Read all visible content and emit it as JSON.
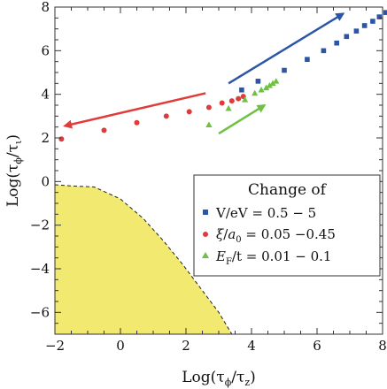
{
  "chart_data": {
    "type": "scatter",
    "xlabel": "Log(τϕ/τz)",
    "ylabel": "Log(τϕ/τι)",
    "xlim": [
      -2,
      8
    ],
    "ylim": [
      -7,
      8
    ],
    "x_ticks": [
      -2,
      0,
      2,
      4,
      6,
      8
    ],
    "x_tick_labels": [
      "−2",
      "0",
      "2",
      "4",
      "6",
      "8"
    ],
    "y_ticks": [
      -6,
      -4,
      -2,
      0,
      2,
      4,
      6,
      8
    ],
    "y_tick_labels": [
      "−6",
      "−4",
      "−2",
      "0",
      "2",
      "4",
      "6",
      "8"
    ],
    "grid": false,
    "legend": {
      "title": "Change of",
      "placement": "center-right",
      "entries": [
        "V/eV = 0.5 − 5",
        "ξ/a₀ = 0.05 −0.45",
        "EF/t = 0.01 − 0.1"
      ]
    },
    "series": [
      {
        "marker": "square",
        "color": "#2b56a8",
        "points": [
          [
            3.7,
            4.2
          ],
          [
            4.2,
            4.6
          ],
          [
            5.0,
            5.1
          ],
          [
            5.7,
            5.6
          ],
          [
            6.2,
            6.0
          ],
          [
            6.6,
            6.35
          ],
          [
            6.9,
            6.65
          ],
          [
            7.2,
            6.9
          ],
          [
            7.45,
            7.15
          ],
          [
            7.7,
            7.35
          ],
          [
            7.9,
            7.55
          ],
          [
            8.1,
            7.75
          ]
        ]
      },
      {
        "marker": "circle",
        "color": "#e03a3a",
        "points": [
          [
            -1.8,
            1.95
          ],
          [
            -0.5,
            2.35
          ],
          [
            0.5,
            2.7
          ],
          [
            1.4,
            3.0
          ],
          [
            2.1,
            3.2
          ],
          [
            2.7,
            3.4
          ],
          [
            3.1,
            3.6
          ],
          [
            3.4,
            3.7
          ],
          [
            3.6,
            3.8
          ],
          [
            3.75,
            3.9
          ]
        ]
      },
      {
        "marker": "triangle",
        "color": "#6fc144",
        "points": [
          [
            2.7,
            2.6
          ],
          [
            3.3,
            3.35
          ],
          [
            3.8,
            3.75
          ],
          [
            4.1,
            4.05
          ],
          [
            4.3,
            4.2
          ],
          [
            4.45,
            4.3
          ],
          [
            4.55,
            4.4
          ],
          [
            4.65,
            4.5
          ],
          [
            4.75,
            4.6
          ]
        ]
      }
    ],
    "arrows": [
      {
        "color": "#2b56a8",
        "from": [
          3.3,
          4.5
        ],
        "to": [
          6.8,
          7.7
        ]
      },
      {
        "color": "#e03a3a",
        "from": [
          2.6,
          4.05
        ],
        "to": [
          -1.7,
          2.55
        ]
      },
      {
        "color": "#6fc144",
        "from": [
          3.0,
          2.2
        ],
        "to": [
          4.4,
          3.5
        ]
      }
    ],
    "shaded_region": {
      "color": "#f2ea70",
      "boundary": [
        [
          -2,
          -0.15
        ],
        [
          -1.5,
          -0.2
        ],
        [
          -0.8,
          -0.25
        ],
        [
          0,
          -0.8
        ],
        [
          0.7,
          -1.7
        ],
        [
          1.3,
          -2.7
        ],
        [
          1.9,
          -3.8
        ],
        [
          2.5,
          -5.0
        ],
        [
          3.0,
          -6.0
        ],
        [
          3.4,
          -7.0
        ]
      ]
    }
  }
}
